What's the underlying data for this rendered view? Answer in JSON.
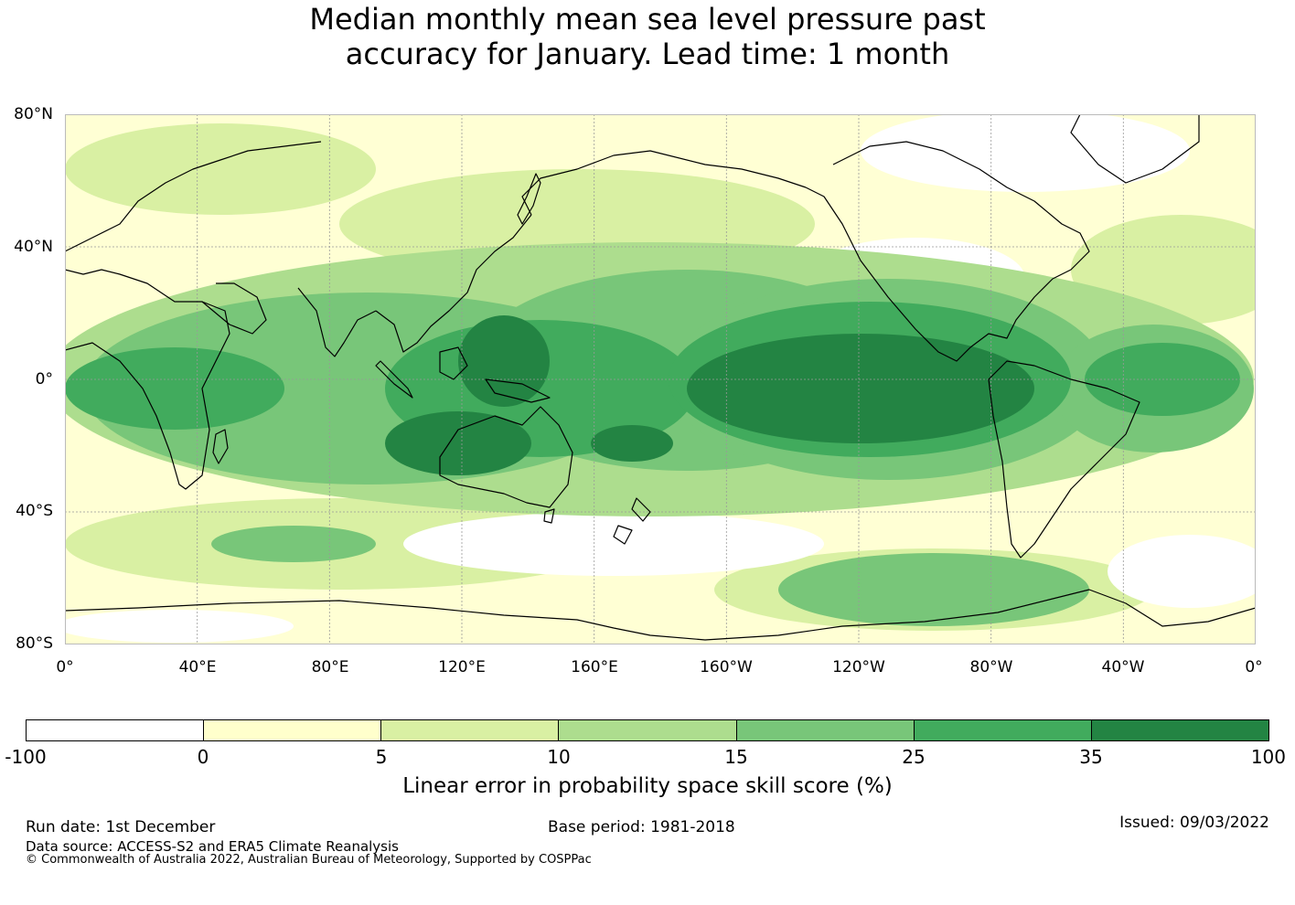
{
  "title": {
    "line1": "Median monthly mean sea level pressure past",
    "line2": "accuracy for January. Lead time: 1 month"
  },
  "map": {
    "lat_labels": [
      "80°N",
      "40°N",
      "0°",
      "40°S",
      "80°S"
    ],
    "lon_labels": [
      "0°",
      "40°E",
      "80°E",
      "120°E",
      "160°E",
      "160°W",
      "120°W",
      "80°W",
      "40°W",
      "0°"
    ],
    "lat_range": [
      -80,
      80
    ],
    "lon_range_east": [
      0,
      360
    ]
  },
  "colorbar": {
    "title": "Linear error in probability space skill score (%)",
    "ticks": [
      "-100",
      "0",
      "5",
      "10",
      "15",
      "25",
      "35",
      "100"
    ],
    "bins": [
      {
        "range": "-100 to 0",
        "color": "#ffffff"
      },
      {
        "range": "0 to 5",
        "color": "#ffffcc"
      },
      {
        "range": "5 to 10",
        "color": "#d9f0a3"
      },
      {
        "range": "10 to 15",
        "color": "#addd8e"
      },
      {
        "range": "15 to 25",
        "color": "#78c679"
      },
      {
        "range": "25 to 35",
        "color": "#41ab5d"
      },
      {
        "range": "35 to 100",
        "color": "#238443"
      }
    ]
  },
  "footer": {
    "run_date": "Run date: 1st December",
    "base_period": "Base period: 1981-2018",
    "issued": "Issued: 09/03/2022",
    "data_source": "Data source: ACCESS-S2 and ERA5 Climate Reanalysis",
    "copyright": "© Commonwealth of Australia 2022, Australian Bureau of Meteorology, Supported by COSPPac"
  },
  "colors": {
    "coastline": "#000000",
    "grid": "#999999"
  }
}
